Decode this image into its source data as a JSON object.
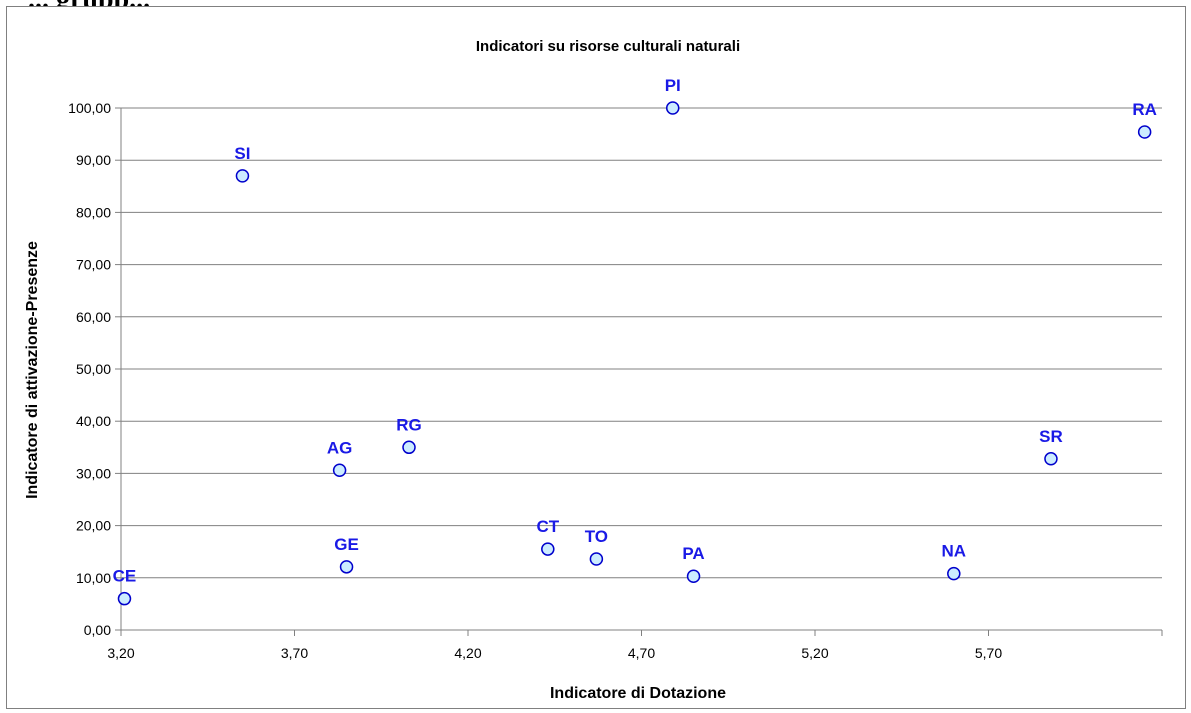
{
  "page_fragment": "... grupp...",
  "chart_data": {
    "type": "scatter",
    "title": "Indicatori su risorse culturali naturali",
    "xlabel": "Indicatore di Dotazione",
    "ylabel": "Indicatore di attivazione-Presenze",
    "xlim": [
      3.2,
      6.2
    ],
    "ylim": [
      0,
      100
    ],
    "x_ticks": [
      "3,20",
      "3,70",
      "4,20",
      "4,70",
      "5,20",
      "5,70"
    ],
    "x_tick_values": [
      3.2,
      3.7,
      4.2,
      4.7,
      5.2,
      5.7
    ],
    "y_ticks": [
      "0,00",
      "10,00",
      "20,00",
      "30,00",
      "40,00",
      "50,00",
      "60,00",
      "70,00",
      "80,00",
      "90,00",
      "100,00"
    ],
    "y_tick_values": [
      0,
      10,
      20,
      30,
      40,
      50,
      60,
      70,
      80,
      90,
      100
    ],
    "grid": "horizontal",
    "legend": "none",
    "points": [
      {
        "label": "CE",
        "x": 3.21,
        "y": 6.0
      },
      {
        "label": "SI",
        "x": 3.55,
        "y": 87.0
      },
      {
        "label": "AG",
        "x": 3.83,
        "y": 30.6
      },
      {
        "label": "GE",
        "x": 3.85,
        "y": 12.1
      },
      {
        "label": "RG",
        "x": 4.03,
        "y": 35.0
      },
      {
        "label": "CT",
        "x": 4.43,
        "y": 15.5
      },
      {
        "label": "TO",
        "x": 4.57,
        "y": 13.6
      },
      {
        "label": "PI",
        "x": 4.79,
        "y": 100.0
      },
      {
        "label": "PA",
        "x": 4.85,
        "y": 10.3
      },
      {
        "label": "NA",
        "x": 5.6,
        "y": 10.8
      },
      {
        "label": "SR",
        "x": 5.88,
        "y": 32.8
      },
      {
        "label": "RA",
        "x": 6.15,
        "y": 95.4
      }
    ],
    "colors": {
      "marker_fill": "#CCECFF",
      "marker_stroke": "#0000CC",
      "point_label": "#1A1AE6",
      "gridline": "#808080",
      "axis": "#808080",
      "text": "#000000"
    }
  }
}
